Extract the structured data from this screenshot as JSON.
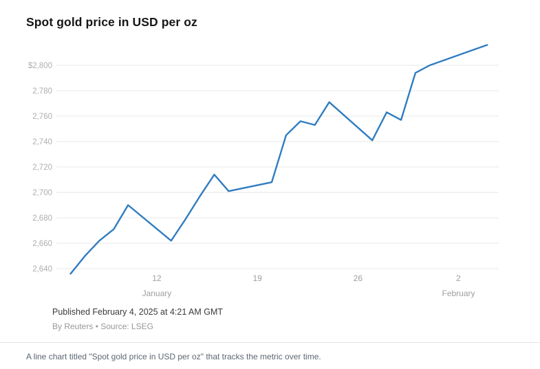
{
  "article": {
    "title": "Spot gold price in USD per oz",
    "published": "Published February 4, 2025 at 4:21 AM GMT",
    "byline": "By Reuters • Source: LSEG",
    "caption": "A line chart titled \"Spot gold price in USD per oz\" that tracks the metric over time."
  },
  "chart_data": {
    "type": "line",
    "title": "Spot gold price in USD per oz",
    "xlabel": "",
    "ylabel": "USD per oz",
    "grid": "horizontal",
    "legend": "none",
    "line_color": "#2f7cc0",
    "ylim": [
      2630,
      2820
    ],
    "x_domain_days": [
      5.3,
      35.8
    ],
    "y_ticks": [
      {
        "value": 2640,
        "label": "2,640"
      },
      {
        "value": 2660,
        "label": "2,660"
      },
      {
        "value": 2680,
        "label": "2,680"
      },
      {
        "value": 2700,
        "label": "2,700"
      },
      {
        "value": 2720,
        "label": "2,720"
      },
      {
        "value": 2740,
        "label": "2,740"
      },
      {
        "value": 2760,
        "label": "2,760"
      },
      {
        "value": 2780,
        "label": "2,780"
      },
      {
        "value": 2800,
        "label": "$2,800"
      }
    ],
    "x_ticks": [
      {
        "day": 12,
        "label": "12",
        "month": "January"
      },
      {
        "day": 19,
        "label": "19"
      },
      {
        "day": 26,
        "label": "26"
      },
      {
        "day": 33,
        "label": "2",
        "month": "February"
      }
    ],
    "series": [
      {
        "name": "Spot gold price",
        "color": "#2f7cc0",
        "points": [
          {
            "date": "Jan 6",
            "day": 6,
            "value": 2636
          },
          {
            "date": "Jan 7",
            "day": 7,
            "value": 2650
          },
          {
            "date": "Jan 8",
            "day": 8,
            "value": 2662
          },
          {
            "date": "Jan 9",
            "day": 9,
            "value": 2671
          },
          {
            "date": "Jan 10",
            "day": 10,
            "value": 2690
          },
          {
            "date": "Jan 13",
            "day": 13,
            "value": 2662
          },
          {
            "date": "Jan 14",
            "day": 14,
            "value": 2679
          },
          {
            "date": "Jan 15",
            "day": 15,
            "value": 2697
          },
          {
            "date": "Jan 16",
            "day": 16,
            "value": 2714
          },
          {
            "date": "Jan 17",
            "day": 17,
            "value": 2701
          },
          {
            "date": "Jan 20",
            "day": 20,
            "value": 2708
          },
          {
            "date": "Jan 21",
            "day": 21,
            "value": 2745
          },
          {
            "date": "Jan 22",
            "day": 22,
            "value": 2756
          },
          {
            "date": "Jan 23",
            "day": 23,
            "value": 2753
          },
          {
            "date": "Jan 24",
            "day": 24,
            "value": 2771
          },
          {
            "date": "Jan 27",
            "day": 27,
            "value": 2741
          },
          {
            "date": "Jan 28",
            "day": 28,
            "value": 2763
          },
          {
            "date": "Jan 29",
            "day": 29,
            "value": 2757
          },
          {
            "date": "Jan 30",
            "day": 30,
            "value": 2794
          },
          {
            "date": "Jan 31",
            "day": 31,
            "value": 2800
          },
          {
            "date": "Feb 3",
            "day": 34,
            "value": 2812
          },
          {
            "date": "Feb 4",
            "day": 35,
            "value": 2816
          }
        ]
      }
    ]
  }
}
